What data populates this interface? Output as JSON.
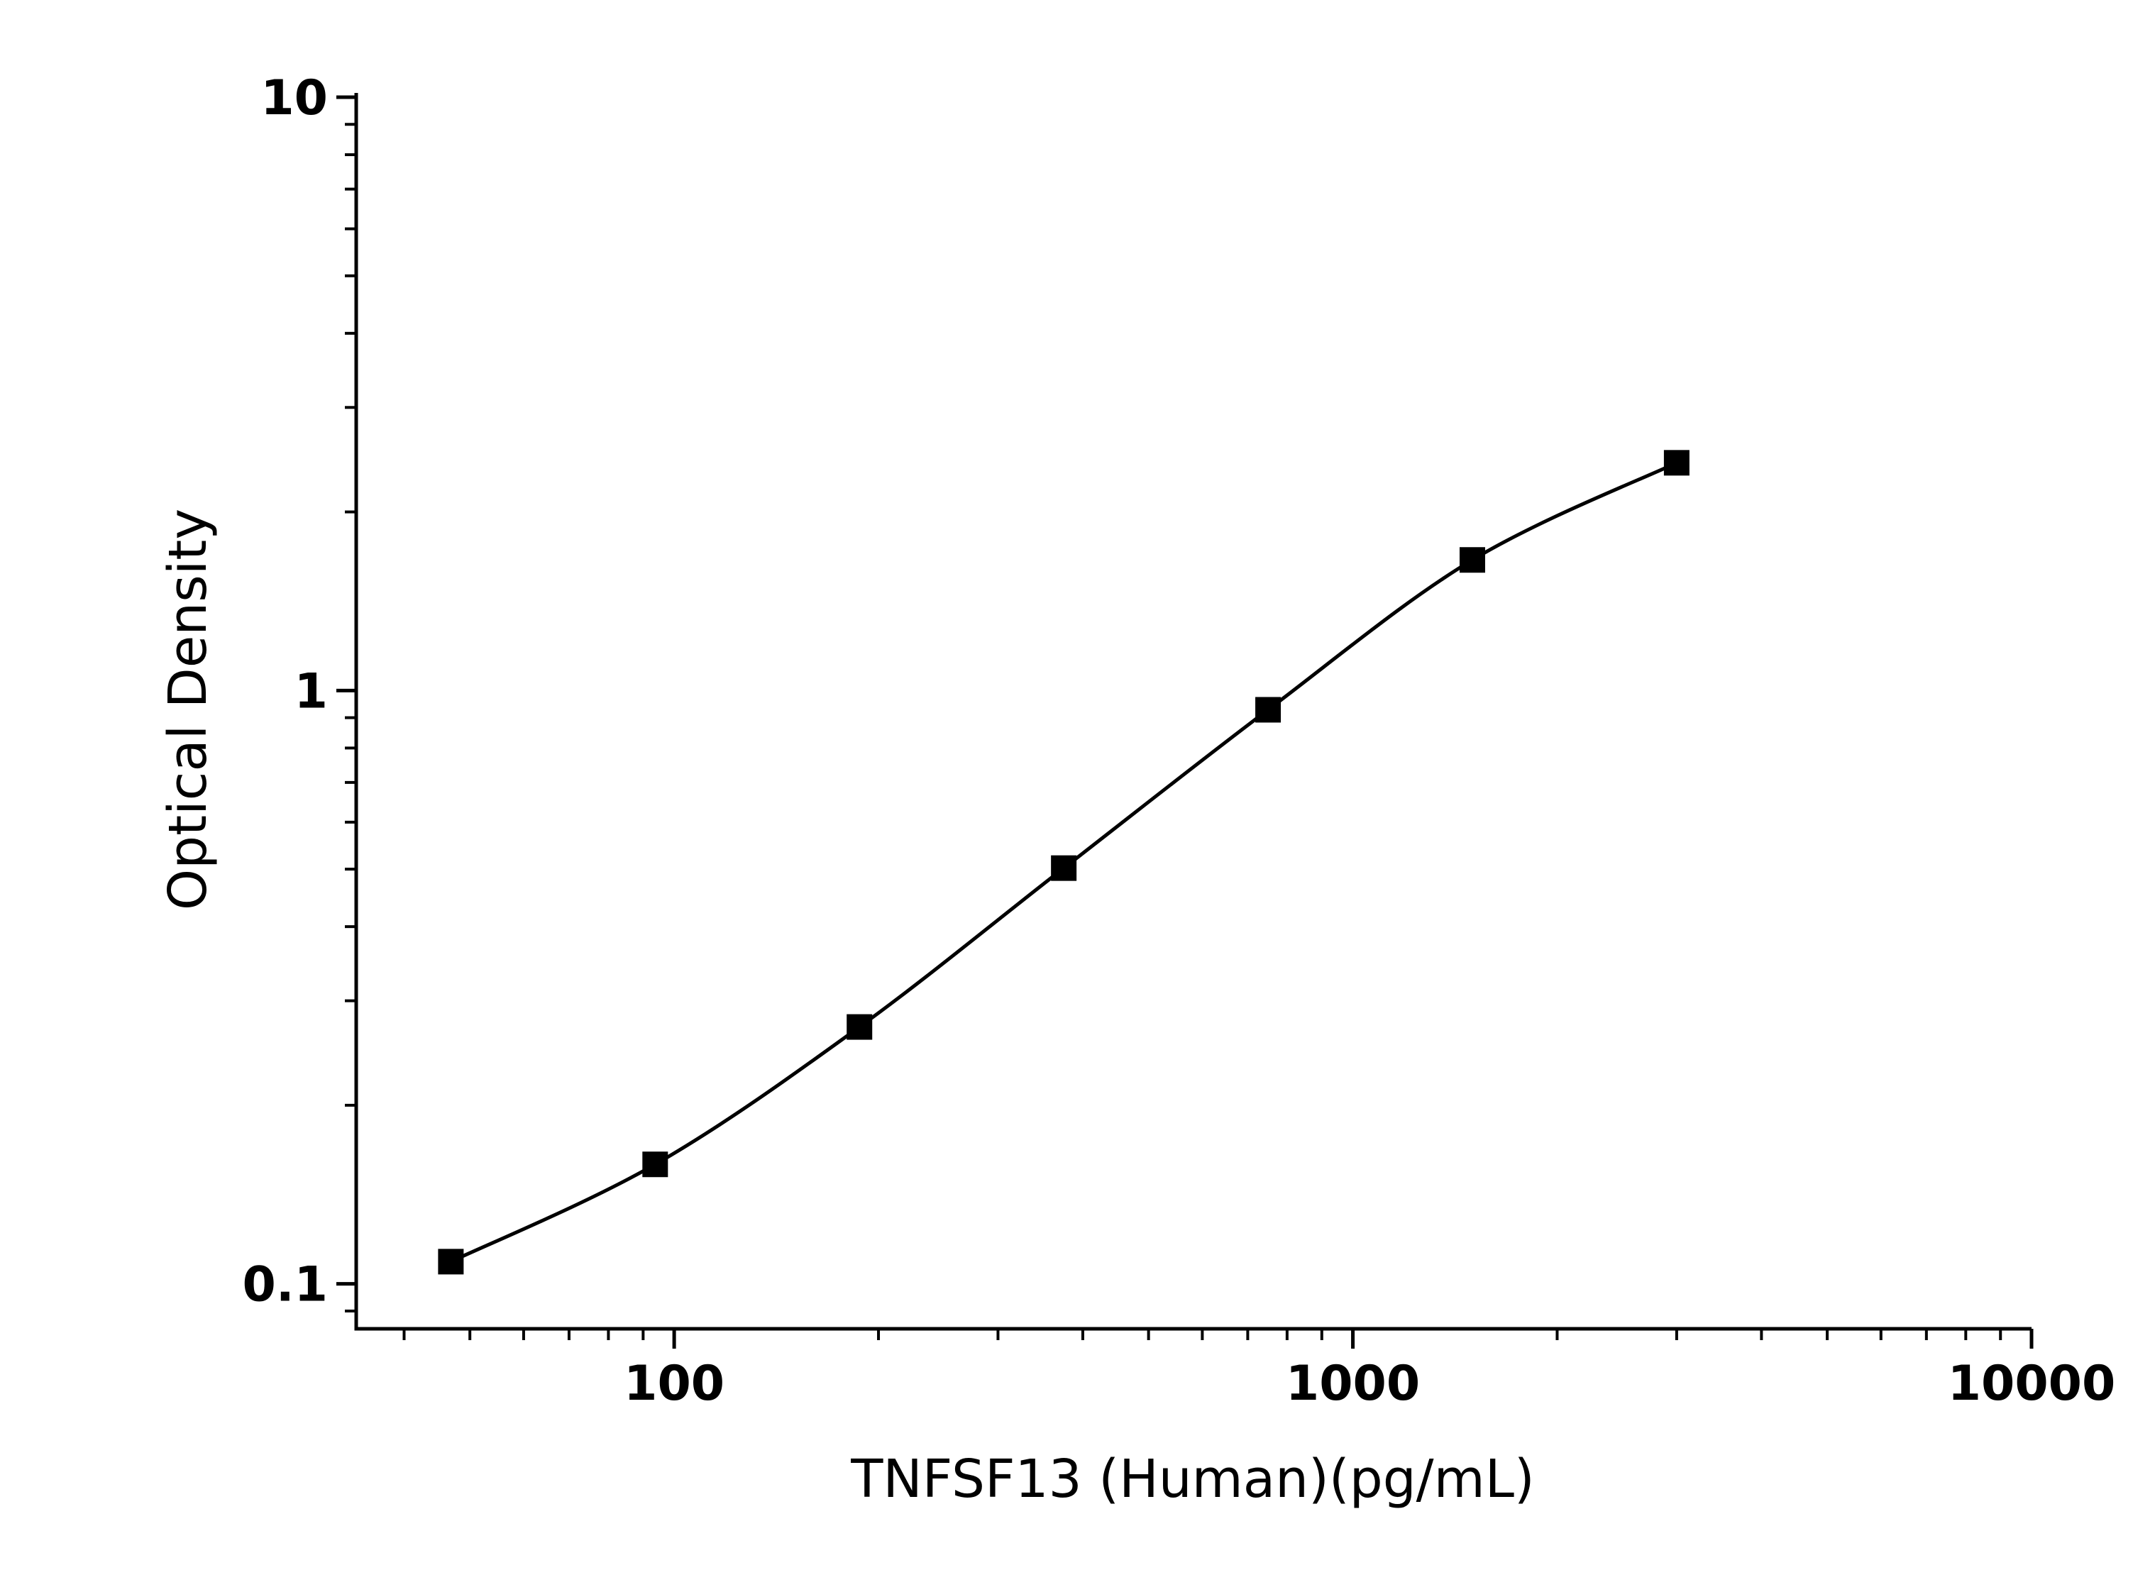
{
  "chart_data": {
    "type": "scatter",
    "xlabel": "TNFSF13 (Human)(pg/mL)",
    "ylabel": "Optical Density",
    "xscale": "log",
    "yscale": "log",
    "xlim": [
      34,
      10000
    ],
    "ylim": [
      0.084,
      10
    ],
    "xticks": [
      100,
      1000,
      10000
    ],
    "yticks": [
      0.1,
      1,
      10
    ],
    "fit_line": true,
    "series": [
      {
        "color": "#000000",
        "x": [
          46.875,
          93.75,
          187.5,
          375,
          750,
          1500,
          3000
        ],
        "values": [
          0.109,
          0.159,
          0.271,
          0.502,
          0.928,
          1.66,
          2.42
        ]
      }
    ]
  }
}
